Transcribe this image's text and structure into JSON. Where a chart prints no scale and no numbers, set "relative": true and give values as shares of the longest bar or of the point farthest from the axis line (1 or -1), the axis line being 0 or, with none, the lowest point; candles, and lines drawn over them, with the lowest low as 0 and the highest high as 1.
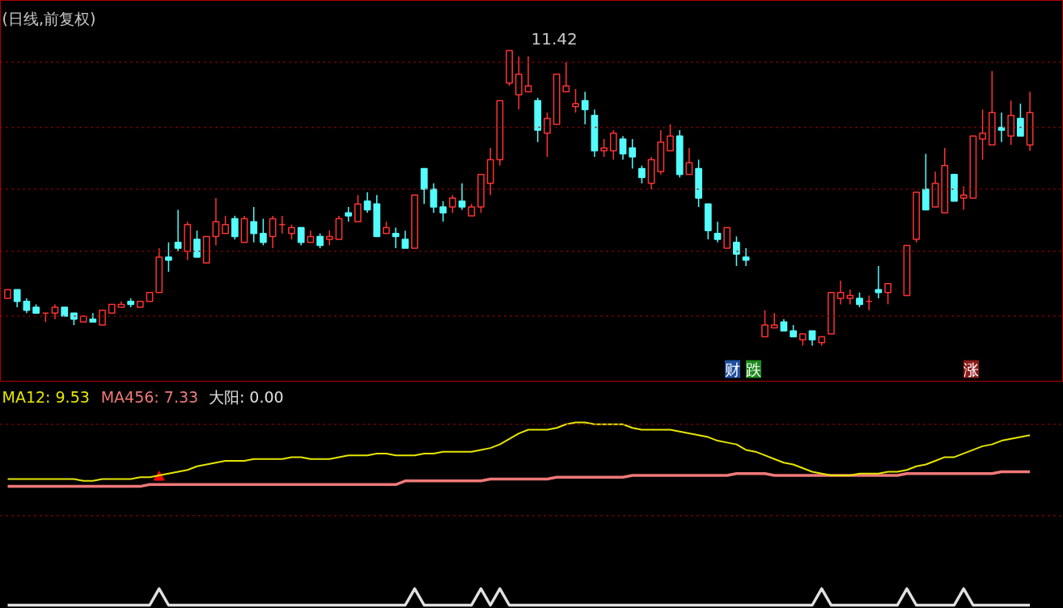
{
  "chart_data": [
    {
      "type": "candlestick",
      "title": "(日线,前复权)",
      "relative": true,
      "categories": [
        null,
        null,
        null,
        null,
        null,
        null,
        null,
        null,
        null,
        null,
        null,
        null,
        null,
        null,
        null,
        null,
        null,
        null,
        null,
        null,
        null,
        null,
        null,
        null,
        null,
        null,
        null,
        null,
        null,
        null,
        null,
        null,
        null,
        null,
        null,
        null,
        null,
        null,
        null,
        null,
        null,
        null,
        null,
        null,
        null,
        null,
        null,
        null,
        null,
        null,
        null,
        null,
        null,
        null,
        null,
        null,
        null,
        null,
        null,
        null,
        null,
        null,
        null,
        null,
        null,
        null,
        null,
        null,
        null,
        null,
        null,
        null,
        null,
        null,
        null,
        null,
        null,
        null,
        null,
        null,
        null,
        null,
        null,
        null,
        null,
        null,
        null,
        null,
        null,
        null,
        null,
        null,
        null,
        null,
        null,
        null,
        null,
        null,
        null,
        null,
        null,
        null,
        null,
        null,
        null,
        null,
        null,
        null,
        null
      ],
      "ohlc": [
        [
          0.16,
          0.19,
          0.16,
          0.19
        ],
        [
          0.19,
          0.19,
          0.13,
          0.15
        ],
        [
          0.15,
          0.16,
          0.11,
          0.12
        ],
        [
          0.13,
          0.14,
          0.11,
          0.11
        ],
        [
          0.11,
          0.11,
          0.08,
          0.11
        ],
        [
          0.11,
          0.14,
          0.09,
          0.13
        ],
        [
          0.13,
          0.13,
          0.1,
          0.1
        ],
        [
          0.11,
          0.11,
          0.07,
          0.09
        ],
        [
          0.08,
          0.1,
          0.08,
          0.1
        ],
        [
          0.09,
          0.11,
          0.08,
          0.08
        ],
        [
          0.07,
          0.12,
          0.07,
          0.12
        ],
        [
          0.11,
          0.14,
          0.11,
          0.14
        ],
        [
          0.13,
          0.15,
          0.13,
          0.14
        ],
        [
          0.15,
          0.16,
          0.13,
          0.14
        ],
        [
          0.13,
          0.15,
          0.13,
          0.15
        ],
        [
          0.15,
          0.18,
          0.15,
          0.18
        ],
        [
          0.18,
          0.33,
          0.18,
          0.3
        ],
        [
          0.3,
          0.35,
          0.25,
          0.29
        ],
        [
          0.35,
          0.46,
          0.32,
          0.33
        ],
        [
          0.32,
          0.42,
          0.29,
          0.41
        ],
        [
          0.36,
          0.39,
          0.3,
          0.3
        ],
        [
          0.28,
          0.37,
          0.28,
          0.37
        ],
        [
          0.37,
          0.5,
          0.34,
          0.42
        ],
        [
          0.38,
          0.44,
          0.38,
          0.41
        ],
        [
          0.43,
          0.44,
          0.36,
          0.37
        ],
        [
          0.35,
          0.44,
          0.35,
          0.43
        ],
        [
          0.42,
          0.47,
          0.35,
          0.38
        ],
        [
          0.38,
          0.43,
          0.34,
          0.35
        ],
        [
          0.37,
          0.44,
          0.33,
          0.43
        ],
        [
          0.41,
          0.44,
          0.38,
          0.41
        ],
        [
          0.38,
          0.41,
          0.36,
          0.4
        ],
        [
          0.4,
          0.4,
          0.34,
          0.35
        ],
        [
          0.35,
          0.39,
          0.35,
          0.37
        ],
        [
          0.37,
          0.38,
          0.33,
          0.34
        ],
        [
          0.36,
          0.39,
          0.34,
          0.37
        ],
        [
          0.36,
          0.44,
          0.36,
          0.43
        ],
        [
          0.45,
          0.47,
          0.42,
          0.44
        ],
        [
          0.42,
          0.51,
          0.42,
          0.48
        ],
        [
          0.49,
          0.52,
          0.45,
          0.46
        ],
        [
          0.48,
          0.51,
          0.37,
          0.37
        ],
        [
          0.38,
          0.42,
          0.38,
          0.4
        ],
        [
          0.38,
          0.4,
          0.33,
          0.37
        ],
        [
          0.36,
          0.39,
          0.33,
          0.33
        ],
        [
          0.33,
          0.51,
          0.33,
          0.51
        ],
        [
          0.6,
          0.6,
          0.48,
          0.53
        ],
        [
          0.53,
          0.55,
          0.45,
          0.47
        ],
        [
          0.47,
          0.49,
          0.42,
          0.45
        ],
        [
          0.47,
          0.51,
          0.45,
          0.5
        ],
        [
          0.49,
          0.55,
          0.46,
          0.47
        ],
        [
          0.44,
          0.48,
          0.44,
          0.47
        ],
        [
          0.47,
          0.58,
          0.45,
          0.58
        ],
        [
          0.55,
          0.67,
          0.51,
          0.63
        ],
        [
          0.63,
          0.83,
          0.61,
          0.83
        ],
        [
          0.89,
          1.0,
          0.88,
          1.0
        ],
        [
          0.85,
          0.98,
          0.8,
          0.92
        ],
        [
          0.86,
          0.98,
          0.86,
          0.88
        ],
        [
          0.83,
          0.84,
          0.69,
          0.73
        ],
        [
          0.72,
          0.79,
          0.64,
          0.77
        ],
        [
          0.75,
          0.92,
          0.75,
          0.92
        ],
        [
          0.86,
          0.96,
          0.86,
          0.88
        ],
        [
          0.81,
          0.87,
          0.79,
          0.82
        ],
        [
          0.83,
          0.86,
          0.75,
          0.8
        ],
        [
          0.78,
          0.8,
          0.64,
          0.66
        ],
        [
          0.66,
          0.7,
          0.64,
          0.67
        ],
        [
          0.66,
          0.73,
          0.63,
          0.72
        ],
        [
          0.7,
          0.71,
          0.63,
          0.65
        ],
        [
          0.67,
          0.7,
          0.6,
          0.64
        ],
        [
          0.6,
          0.61,
          0.55,
          0.57
        ],
        [
          0.55,
          0.64,
          0.53,
          0.63
        ],
        [
          0.59,
          0.73,
          0.58,
          0.69
        ],
        [
          0.66,
          0.75,
          0.66,
          0.71
        ],
        [
          0.71,
          0.73,
          0.57,
          0.58
        ],
        [
          0.58,
          0.67,
          0.58,
          0.62
        ],
        [
          0.6,
          0.63,
          0.47,
          0.5
        ],
        [
          0.48,
          0.48,
          0.36,
          0.39
        ],
        [
          0.38,
          0.42,
          0.35,
          0.36
        ],
        [
          0.33,
          0.4,
          0.33,
          0.4
        ],
        [
          0.35,
          0.37,
          0.27,
          0.31
        ],
        [
          0.3,
          0.33,
          0.27,
          0.29
        ],
        null,
        [
          0.03,
          0.12,
          0.03,
          0.07
        ],
        [
          0.06,
          0.11,
          0.06,
          0.07
        ],
        [
          0.08,
          0.09,
          0.05,
          0.05
        ],
        [
          0.05,
          0.07,
          0.03,
          0.03
        ],
        [
          0.02,
          0.04,
          0,
          0.04
        ],
        [
          0.05,
          0.05,
          0,
          0.02
        ],
        [
          0.01,
          0.03,
          0,
          0.03
        ],
        [
          0.04,
          0.18,
          0.04,
          0.18
        ],
        [
          0.16,
          0.22,
          0.14,
          0.18
        ],
        [
          0.16,
          0.19,
          0.14,
          0.17
        ],
        [
          0.16,
          0.18,
          0.13,
          0.14
        ],
        [
          0.15,
          0.17,
          0.12,
          0.15
        ],
        [
          0.19,
          0.27,
          0.16,
          0.18
        ],
        [
          0.18,
          0.21,
          0.14,
          0.21
        ],
        null,
        [
          0.17,
          0.34,
          0.17,
          0.34
        ],
        [
          0.36,
          0.52,
          0.35,
          0.52
        ],
        [
          0.53,
          0.65,
          0.46,
          0.46
        ],
        [
          0.47,
          0.59,
          0.47,
          0.55
        ],
        [
          0.45,
          0.67,
          0.45,
          0.61
        ],
        [
          0.58,
          0.58,
          0.49,
          0.49
        ],
        [
          0.5,
          0.54,
          0.46,
          0.51
        ],
        [
          0.5,
          0.71,
          0.5,
          0.71
        ],
        [
          0.7,
          0.8,
          0.63,
          0.72
        ],
        [
          0.68,
          0.93,
          0.68,
          0.79
        ],
        [
          0.74,
          0.79,
          0.69,
          0.73
        ],
        [
          0.71,
          0.83,
          0.68,
          0.78
        ],
        [
          0.77,
          0.82,
          0.71,
          0.71
        ],
        [
          0.68,
          0.86,
          0.66,
          0.79
        ]
      ],
      "colors": [
        "#ff3232",
        "#54fcfc",
        "#54fcfc",
        "#54fcfc",
        "#ff3232",
        "#ff3232",
        "#54fcfc",
        "#54fcfc",
        "#ff3232",
        "#54fcfc",
        "#ff3232",
        "#ff3232",
        "#ff3232",
        "#54fcfc",
        "#ff3232",
        "#ff3232",
        "#ff3232",
        "#54fcfc",
        "#54fcfc",
        "#ff3232",
        "#54fcfc",
        "#ff3232",
        "#ff3232",
        "#ff3232",
        "#54fcfc",
        "#ff3232",
        "#54fcfc",
        "#54fcfc",
        "#ff3232",
        "#ff3232",
        "#ff3232",
        "#54fcfc",
        "#ff3232",
        "#54fcfc",
        "#ff3232",
        "#ff3232",
        "#54fcfc",
        "#ff3232",
        "#54fcfc",
        "#54fcfc",
        "#ff3232",
        "#54fcfc",
        "#54fcfc",
        "#ff3232",
        "#54fcfc",
        "#54fcfc",
        "#54fcfc",
        "#ff3232",
        "#54fcfc",
        "#ff3232",
        "#ff3232",
        "#ff3232",
        "#ff3232",
        "#ff3232",
        "#ff3232",
        "#ff3232",
        "#54fcfc",
        "#ff3232",
        "#ff3232",
        "#ff3232",
        "#ff3232",
        "#54fcfc",
        "#54fcfc",
        "#ff3232",
        "#ff3232",
        "#54fcfc",
        "#54fcfc",
        "#54fcfc",
        "#ff3232",
        "#ff3232",
        "#ff3232",
        "#54fcfc",
        "#ff3232",
        "#54fcfc",
        "#54fcfc",
        "#54fcfc",
        "#ff3232",
        "#54fcfc",
        "#54fcfc",
        null,
        "#ff3232",
        "#ff3232",
        "#54fcfc",
        "#54fcfc",
        "#ff3232",
        "#54fcfc",
        "#ff3232",
        "#ff3232",
        "#ff3232",
        "#ff3232",
        "#54fcfc",
        "#ff3232",
        "#54fcfc",
        "#ff3232",
        null,
        "#ff3232",
        "#ff3232",
        "#54fcfc",
        "#ff3232",
        "#ff3232",
        "#54fcfc",
        "#ff3232",
        "#ff3232",
        "#ff3232",
        "#ff3232",
        "#54fcfc",
        "#ff3232",
        "#54fcfc",
        "#ff3232"
      ],
      "ref_lines": [
        {
          "axis": "y",
          "value": 0.96,
          "color": "#a00000",
          "line_style": "dotted"
        },
        {
          "axis": "y",
          "value": 0.74,
          "color": "#a00000",
          "line_style": "dotted"
        },
        {
          "axis": "y",
          "value": 0.53,
          "color": "#a00000",
          "line_style": "dotted"
        },
        {
          "axis": "y",
          "value": 0.32,
          "color": "#a00000",
          "line_style": "dotted"
        },
        {
          "axis": "y",
          "value": 0.1,
          "color": "#a00000",
          "line_style": "dotted"
        }
      ],
      "annotations": [
        "11.42",
        "财",
        "跌",
        "涨"
      ]
    },
    {
      "type": "line",
      "relative": true,
      "legend": "top left",
      "categories": [
        null,
        null,
        null,
        null,
        null,
        null,
        null,
        null,
        null,
        null,
        null,
        null,
        null,
        null,
        null,
        null,
        null,
        null,
        null,
        null,
        null,
        null,
        null,
        null,
        null,
        null,
        null,
        null,
        null,
        null,
        null,
        null,
        null,
        null,
        null,
        null,
        null,
        null,
        null,
        null,
        null,
        null,
        null,
        null,
        null,
        null,
        null,
        null,
        null,
        null,
        null,
        null,
        null,
        null,
        null,
        null,
        null,
        null,
        null,
        null,
        null,
        null,
        null,
        null,
        null,
        null,
        null,
        null,
        null,
        null,
        null,
        null,
        null,
        null,
        null,
        null,
        null,
        null,
        null,
        null,
        null,
        null,
        null,
        null,
        null,
        null,
        null,
        null,
        null,
        null,
        null,
        null,
        null,
        null,
        null,
        null,
        null,
        null,
        null,
        null,
        null,
        null,
        null,
        null,
        null,
        null,
        null,
        null,
        null
      ],
      "series": [
        {
          "name": "MA12: 9.53",
          "color": "#e6e600",
          "values": [
            0.69,
            0.69,
            0.69,
            0.69,
            0.69,
            0.69,
            0.69,
            0.69,
            0.68,
            0.68,
            0.69,
            0.69,
            0.69,
            0.69,
            0.7,
            0.7,
            0.71,
            0.72,
            0.73,
            0.74,
            0.76,
            0.77,
            0.78,
            0.79,
            0.79,
            0.79,
            0.8,
            0.8,
            0.8,
            0.8,
            0.81,
            0.81,
            0.8,
            0.8,
            0.8,
            0.81,
            0.82,
            0.82,
            0.82,
            0.83,
            0.83,
            0.82,
            0.82,
            0.82,
            0.83,
            0.83,
            0.84,
            0.84,
            0.84,
            0.84,
            0.85,
            0.86,
            0.88,
            0.91,
            0.94,
            0.96,
            0.96,
            0.96,
            0.97,
            0.99,
            1.0,
            1.0,
            0.99,
            0.99,
            0.99,
            0.99,
            0.97,
            0.96,
            0.96,
            0.96,
            0.96,
            0.95,
            0.94,
            0.93,
            0.92,
            0.9,
            0.89,
            0.88,
            0.85,
            0.84,
            0.82,
            0.8,
            0.78,
            0.77,
            0.75,
            0.73,
            0.72,
            0.71,
            0.71,
            0.71,
            0.72,
            0.72,
            0.72,
            0.73,
            0.73,
            0.74,
            0.76,
            0.77,
            0.79,
            0.81,
            0.81,
            0.83,
            0.85,
            0.87,
            0.88,
            0.9,
            0.91,
            0.92,
            0.93
          ]
        },
        {
          "name": "MA456: 7.33",
          "color": "#f07878",
          "values": [
            0.65,
            0.65,
            0.65,
            0.65,
            0.65,
            0.65,
            0.65,
            0.65,
            0.65,
            0.65,
            0.65,
            0.65,
            0.65,
            0.65,
            0.65,
            0.66,
            0.66,
            0.66,
            0.66,
            0.66,
            0.66,
            0.66,
            0.66,
            0.66,
            0.66,
            0.66,
            0.66,
            0.66,
            0.66,
            0.66,
            0.66,
            0.66,
            0.66,
            0.66,
            0.66,
            0.66,
            0.66,
            0.66,
            0.66,
            0.66,
            0.66,
            0.66,
            0.68,
            0.68,
            0.68,
            0.68,
            0.68,
            0.68,
            0.68,
            0.68,
            0.68,
            0.69,
            0.69,
            0.69,
            0.69,
            0.69,
            0.69,
            0.69,
            0.7,
            0.7,
            0.7,
            0.7,
            0.7,
            0.7,
            0.7,
            0.7,
            0.71,
            0.71,
            0.71,
            0.71,
            0.71,
            0.71,
            0.71,
            0.71,
            0.71,
            0.71,
            0.71,
            0.72,
            0.72,
            0.72,
            0.72,
            0.71,
            0.71,
            0.71,
            0.71,
            0.71,
            0.71,
            0.71,
            0.71,
            0.71,
            0.71,
            0.71,
            0.71,
            0.71,
            0.71,
            0.72,
            0.72,
            0.72,
            0.72,
            0.72,
            0.72,
            0.72,
            0.72,
            0.72,
            0.72,
            0.73,
            0.73,
            0.73,
            0.73
          ]
        },
        {
          "name": "大阳: 0.00",
          "color": "#e0e0e0",
          "values": [
            0,
            0,
            0,
            0,
            0,
            0,
            0,
            0,
            0,
            0,
            0,
            0,
            0,
            0,
            0,
            0,
            0.09,
            0,
            0,
            0,
            0,
            0,
            0,
            0,
            0,
            0,
            0,
            0,
            0,
            0,
            0,
            0,
            0,
            0,
            0,
            0,
            0,
            0,
            0,
            0,
            0,
            0,
            0,
            0.09,
            0,
            0,
            0,
            0,
            0,
            0,
            0.09,
            0,
            0.09,
            0,
            0,
            0,
            0,
            0,
            0,
            0,
            0,
            0,
            0,
            0,
            0,
            0,
            0,
            0,
            0,
            0,
            0,
            0,
            0,
            0,
            0,
            0,
            0,
            0,
            0,
            0,
            0,
            0,
            0,
            0,
            0,
            0,
            0.09,
            0,
            0,
            0,
            0,
            0,
            0,
            0,
            0,
            0.09,
            0,
            0,
            0,
            0,
            0,
            0.09,
            0,
            0,
            0,
            0,
            0,
            0,
            0
          ]
        },
        {
          "type": "scatter",
          "marker": "triangle",
          "color": "#ff0000",
          "values": [
            null,
            null,
            null,
            null,
            null,
            null,
            null,
            null,
            null,
            null,
            null,
            null,
            null,
            null,
            null,
            null,
            0.7,
            null,
            null,
            null,
            null,
            null,
            null,
            null,
            null,
            null,
            null,
            null,
            null,
            null,
            null,
            null,
            null,
            null,
            null,
            null,
            null,
            null,
            null,
            null,
            null,
            null,
            null,
            null,
            null,
            null,
            null,
            null,
            null,
            null,
            null,
            null,
            null,
            null,
            null,
            null,
            null,
            null,
            null,
            null,
            null,
            null,
            null,
            null,
            null,
            null,
            null,
            null,
            null,
            null,
            null,
            null,
            null,
            null,
            null,
            null,
            null,
            null,
            null,
            null,
            null,
            null,
            null,
            null,
            null,
            null,
            null,
            null,
            null,
            null,
            null,
            null,
            null,
            null,
            null,
            null,
            null,
            null,
            null,
            null,
            null,
            null,
            null,
            null,
            null,
            null,
            null,
            null,
            null
          ]
        }
      ],
      "ref_lines": [
        {
          "axis": "y",
          "value": 0.99,
          "color": "#a00000",
          "line_style": "dotted"
        },
        {
          "axis": "y",
          "value": 0.49,
          "color": "#a00000",
          "line_style": "dotted"
        }
      ]
    }
  ]
}
